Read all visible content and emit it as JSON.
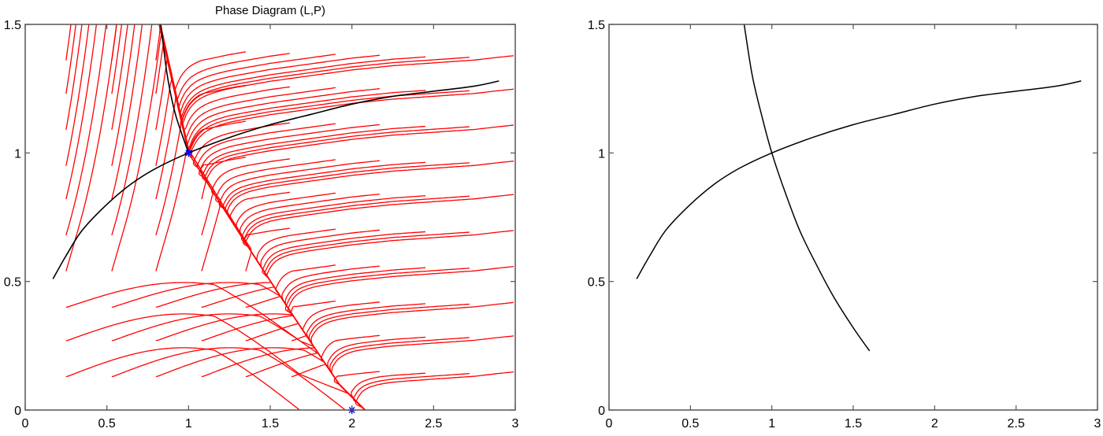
{
  "chart_data": [
    {
      "type": "line",
      "title": "Phase Diagram (L,P)",
      "xlabel": "",
      "ylabel": "",
      "xlim": [
        0,
        3
      ],
      "ylim": [
        0,
        1.5
      ],
      "xticks": [
        0,
        0.5,
        1,
        1.5,
        2,
        2.5,
        3
      ],
      "xtick_labels": [
        "0",
        "0.5",
        "1",
        "1.5",
        "2",
        "2.5",
        "3"
      ],
      "yticks": [
        0,
        0.5,
        1,
        1.5
      ],
      "ytick_labels": [
        "0",
        "0.5",
        "1",
        "1.5"
      ],
      "grid": false,
      "legend": null,
      "series": [
        {
          "name": "increasing-nullcline",
          "color": "#000000",
          "x": [
            0.17,
            0.25,
            0.35,
            0.5,
            0.65,
            0.8,
            1.0,
            1.25,
            1.5,
            1.75,
            2.0,
            2.25,
            2.5,
            2.75,
            2.9
          ],
          "y": [
            0.51,
            0.6,
            0.7,
            0.8,
            0.88,
            0.94,
            1.0,
            1.06,
            1.11,
            1.15,
            1.19,
            1.22,
            1.24,
            1.26,
            1.28
          ]
        },
        {
          "name": "stable-manifold",
          "color": "#000000",
          "x": [
            0.83,
            0.87,
            0.92,
            1.0
          ],
          "y": [
            1.5,
            1.3,
            1.15,
            1.0
          ]
        },
        {
          "name": "trajectories",
          "color": "#ff0000",
          "description": "Streamlines (red) integrated from a grid of seed points, converging toward the manifold through (1,1) and the point (2,0)"
        }
      ],
      "markers": [
        {
          "name": "equilibrium-1",
          "x": 1,
          "y": 1,
          "symbol": "*",
          "color": "#0000ff"
        },
        {
          "name": "equilibrium-2",
          "x": 2,
          "y": 0,
          "symbol": "*",
          "color": "#0000ff"
        }
      ],
      "seeds": {
        "L": [
          0.25,
          0.53,
          0.8,
          1.08,
          1.35,
          1.63,
          1.9,
          2.18,
          2.45,
          2.72
        ],
        "P": [
          0.13,
          0.27,
          0.4,
          0.54,
          0.68,
          0.82,
          0.95,
          1.09,
          1.23,
          1.36
        ]
      }
    },
    {
      "type": "line",
      "title": "",
      "xlabel": "",
      "ylabel": "",
      "xlim": [
        0,
        3
      ],
      "ylim": [
        0,
        1.5
      ],
      "xticks": [
        0,
        0.5,
        1,
        1.5,
        2,
        2.5,
        3
      ],
      "xtick_labels": [
        "0",
        "0.5",
        "1",
        "1.5",
        "2",
        "2.5",
        "3"
      ],
      "yticks": [
        0,
        0.5,
        1,
        1.5
      ],
      "ytick_labels": [
        "0",
        "0.5",
        "1",
        "1.5"
      ],
      "grid": false,
      "legend": null,
      "series": [
        {
          "name": "increasing-nullcline",
          "color": "#000000",
          "x": [
            0.17,
            0.25,
            0.35,
            0.5,
            0.65,
            0.8,
            1.0,
            1.25,
            1.5,
            1.75,
            2.0,
            2.25,
            2.5,
            2.75,
            2.9
          ],
          "y": [
            0.51,
            0.6,
            0.7,
            0.8,
            0.88,
            0.94,
            1.0,
            1.06,
            1.11,
            1.15,
            1.19,
            1.22,
            1.24,
            1.26,
            1.28
          ]
        },
        {
          "name": "decreasing-nullcline",
          "color": "#000000",
          "x": [
            0.83,
            0.88,
            0.94,
            1.0,
            1.08,
            1.17,
            1.27,
            1.38,
            1.5,
            1.6
          ],
          "y": [
            1.5,
            1.3,
            1.14,
            1.0,
            0.85,
            0.7,
            0.57,
            0.44,
            0.32,
            0.23
          ]
        }
      ]
    }
  ],
  "panels": {
    "left": {
      "title": "Phase Diagram (L,P)"
    },
    "right": {
      "title": ""
    }
  }
}
